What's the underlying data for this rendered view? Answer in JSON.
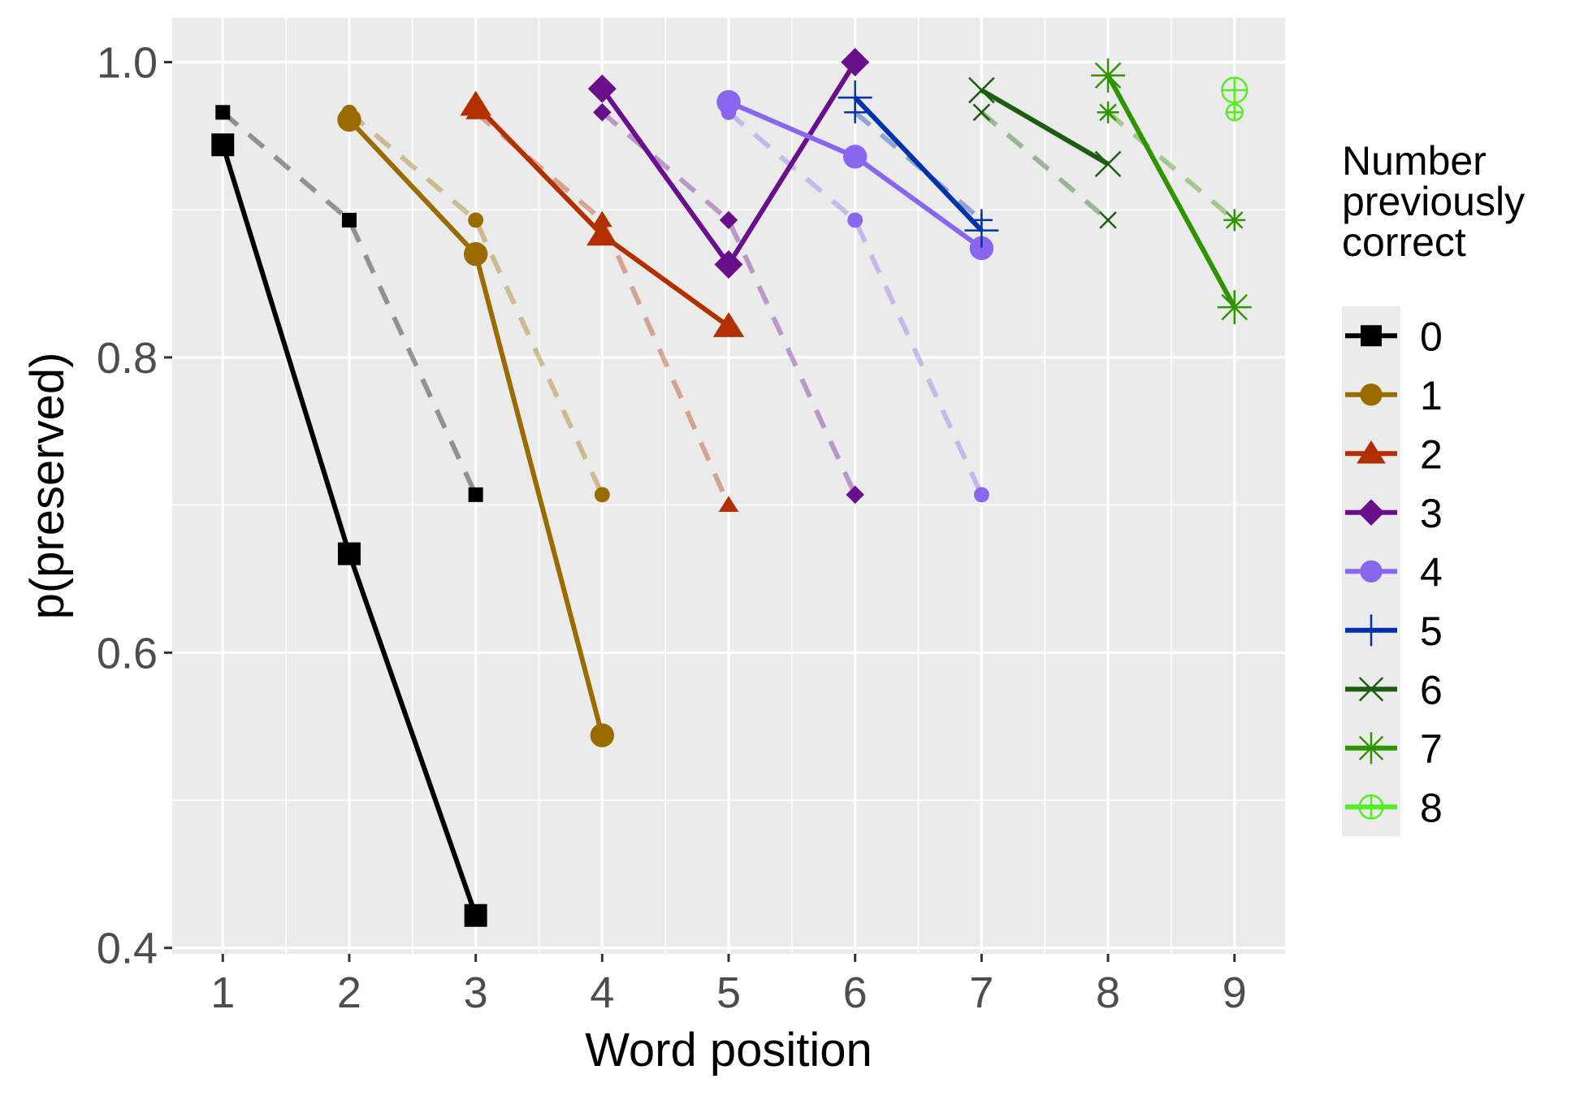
{
  "chart_data": {
    "type": "line",
    "xlabel": "Word position",
    "ylabel": "p(preserved)",
    "x_ticks": [
      "1",
      "2",
      "3",
      "4",
      "5",
      "6",
      "7",
      "8",
      "9"
    ],
    "y_ticks": [
      "0.4",
      "0.6",
      "0.8",
      "1.0"
    ],
    "xlim": [
      0.6,
      9.4
    ],
    "ylim": [
      0.396,
      1.03
    ],
    "grid": true,
    "legend": {
      "title_lines": [
        "Number",
        "previously",
        "correct"
      ],
      "position": "right"
    },
    "series": [
      {
        "name": "0",
        "color": "#000000",
        "shape": "square",
        "solid": [
          [
            1,
            0.944
          ],
          [
            2,
            0.667
          ],
          [
            3,
            0.422
          ]
        ],
        "dashed": [
          [
            1,
            0.966
          ],
          [
            2,
            0.893
          ],
          [
            3,
            0.707
          ]
        ]
      },
      {
        "name": "1",
        "color": "#9a6b00",
        "shape": "circle",
        "solid": [
          [
            2,
            0.961
          ],
          [
            3,
            0.87
          ],
          [
            4,
            0.544
          ]
        ],
        "dashed": [
          [
            2,
            0.966
          ],
          [
            3,
            0.893
          ],
          [
            4,
            0.707
          ]
        ]
      },
      {
        "name": "2",
        "color": "#b23000",
        "shape": "triangle",
        "solid": [
          [
            3,
            0.971
          ],
          [
            4,
            0.883
          ],
          [
            5,
            0.821
          ]
        ],
        "dashed": [
          [
            3,
            0.966
          ],
          [
            4,
            0.893
          ],
          [
            5,
            0.7
          ]
        ]
      },
      {
        "name": "3",
        "color": "#6a0f8c",
        "shape": "diamond",
        "solid": [
          [
            4,
            0.982
          ],
          [
            5,
            0.863
          ],
          [
            6,
            1.0
          ]
        ],
        "dashed": [
          [
            4,
            0.966
          ],
          [
            5,
            0.893
          ],
          [
            6,
            0.707
          ]
        ]
      },
      {
        "name": "4",
        "color": "#8a66ee",
        "shape": "circle",
        "solid": [
          [
            5,
            0.973
          ],
          [
            6,
            0.936
          ],
          [
            7,
            0.874
          ]
        ],
        "dashed": [
          [
            5,
            0.966
          ],
          [
            6,
            0.893
          ],
          [
            7,
            0.707
          ]
        ]
      },
      {
        "name": "5",
        "color": "#0033aa",
        "shape": "plus",
        "solid": [
          [
            6,
            0.976
          ],
          [
            7,
            0.886
          ]
        ],
        "dashed": [
          [
            6,
            0.966
          ],
          [
            7,
            0.893
          ]
        ]
      },
      {
        "name": "6",
        "color": "#1b5e0f",
        "shape": "cross",
        "solid": [
          [
            7,
            0.981
          ],
          [
            8,
            0.931
          ]
        ],
        "dashed": [
          [
            7,
            0.966
          ],
          [
            8,
            0.893
          ]
        ]
      },
      {
        "name": "7",
        "color": "#2e9400",
        "shape": "asterisk",
        "solid": [
          [
            8,
            0.991
          ],
          [
            9,
            0.834
          ]
        ],
        "dashed": [
          [
            8,
            0.966
          ],
          [
            9,
            0.893
          ]
        ]
      },
      {
        "name": "8",
        "color": "#55ee22",
        "shape": "circleplus",
        "solid": [
          [
            9,
            0.981
          ]
        ],
        "dashed": [
          [
            9,
            0.966
          ]
        ]
      }
    ]
  }
}
